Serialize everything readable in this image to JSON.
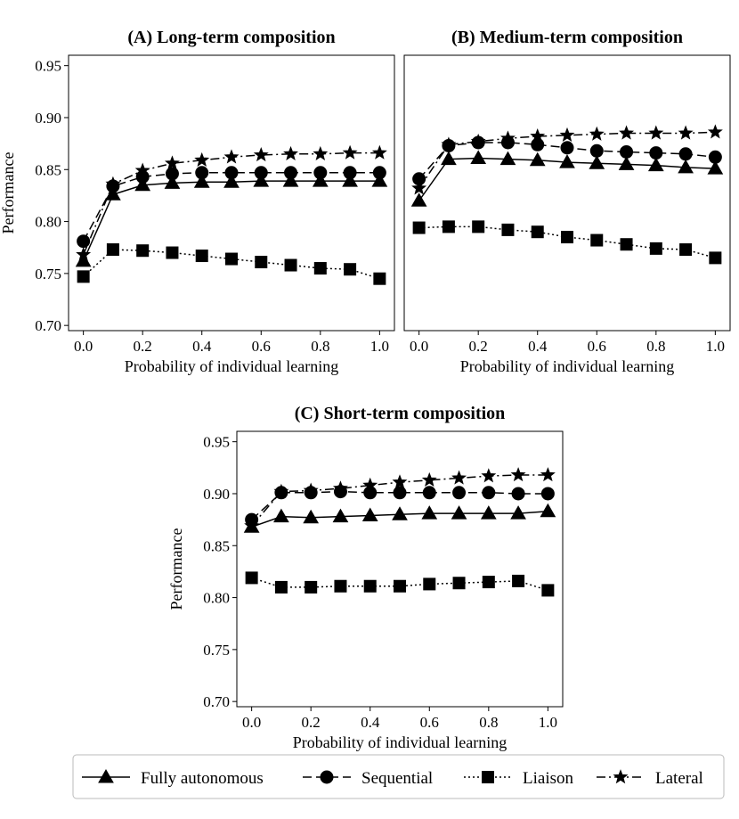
{
  "chart_data": [
    {
      "type": "line",
      "title": "(A) Long-term composition",
      "xlabel": "Probability of individual learning",
      "ylabel": "Performance",
      "xlim": [
        -0.05,
        1.05
      ],
      "ylim": [
        0.695,
        0.96
      ],
      "xticks": [
        "0.0",
        "0.2",
        "0.4",
        "0.6",
        "0.8",
        "1.0"
      ],
      "yticks": [
        "0.70",
        "0.75",
        "0.80",
        "0.85",
        "0.90",
        "0.95"
      ],
      "x": [
        0.0,
        0.1,
        0.2,
        0.3,
        0.4,
        0.5,
        0.6,
        0.7,
        0.8,
        0.9,
        1.0
      ],
      "series": [
        {
          "name": "Fully autonomous",
          "values": [
            0.762,
            0.826,
            0.835,
            0.837,
            0.838,
            0.838,
            0.839,
            0.839,
            0.839,
            0.839,
            0.839
          ]
        },
        {
          "name": "Sequential",
          "values": [
            0.781,
            0.834,
            0.843,
            0.846,
            0.847,
            0.847,
            0.847,
            0.847,
            0.847,
            0.847,
            0.847
          ]
        },
        {
          "name": "Liaison",
          "values": [
            0.747,
            0.773,
            0.772,
            0.77,
            0.767,
            0.764,
            0.761,
            0.758,
            0.755,
            0.754,
            0.745
          ]
        },
        {
          "name": "Lateral",
          "values": [
            0.768,
            0.836,
            0.849,
            0.856,
            0.859,
            0.862,
            0.864,
            0.865,
            0.865,
            0.866,
            0.866
          ]
        }
      ]
    },
    {
      "type": "line",
      "title": "(B) Medium-term composition",
      "xlabel": "Probability of individual learning",
      "ylabel": "",
      "xlim": [
        -0.05,
        1.05
      ],
      "ylim": [
        0.695,
        0.96
      ],
      "xticks": [
        "0.0",
        "0.2",
        "0.4",
        "0.6",
        "0.8",
        "1.0"
      ],
      "yticks": [],
      "x": [
        0.0,
        0.1,
        0.2,
        0.3,
        0.4,
        0.5,
        0.6,
        0.7,
        0.8,
        0.9,
        1.0
      ],
      "series": [
        {
          "name": "Fully autonomous",
          "values": [
            0.82,
            0.86,
            0.861,
            0.86,
            0.859,
            0.857,
            0.856,
            0.855,
            0.854,
            0.852,
            0.851
          ]
        },
        {
          "name": "Sequential",
          "values": [
            0.841,
            0.873,
            0.876,
            0.876,
            0.874,
            0.871,
            0.868,
            0.867,
            0.866,
            0.865,
            0.862
          ]
        },
        {
          "name": "Liaison",
          "values": [
            0.794,
            0.795,
            0.795,
            0.792,
            0.79,
            0.785,
            0.782,
            0.778,
            0.774,
            0.773,
            0.765
          ]
        },
        {
          "name": "Lateral",
          "values": [
            0.832,
            0.874,
            0.877,
            0.88,
            0.882,
            0.883,
            0.884,
            0.885,
            0.885,
            0.885,
            0.886
          ]
        }
      ]
    },
    {
      "type": "line",
      "title": "(C) Short-term composition",
      "xlabel": "Probability of individual learning",
      "ylabel": "Performance",
      "xlim": [
        -0.05,
        1.05
      ],
      "ylim": [
        0.695,
        0.96
      ],
      "xticks": [
        "0.0",
        "0.2",
        "0.4",
        "0.6",
        "0.8",
        "1.0"
      ],
      "yticks": [
        "0.70",
        "0.75",
        "0.80",
        "0.85",
        "0.90",
        "0.95"
      ],
      "x": [
        0.0,
        0.1,
        0.2,
        0.3,
        0.4,
        0.5,
        0.6,
        0.7,
        0.8,
        0.9,
        1.0
      ],
      "series": [
        {
          "name": "Fully autonomous",
          "values": [
            0.868,
            0.878,
            0.877,
            0.878,
            0.879,
            0.88,
            0.881,
            0.881,
            0.881,
            0.881,
            0.883
          ]
        },
        {
          "name": "Sequential",
          "values": [
            0.875,
            0.901,
            0.901,
            0.902,
            0.901,
            0.901,
            0.901,
            0.901,
            0.901,
            0.9,
            0.9
          ]
        },
        {
          "name": "Liaison",
          "values": [
            0.819,
            0.81,
            0.81,
            0.811,
            0.811,
            0.811,
            0.813,
            0.814,
            0.815,
            0.816,
            0.807
          ]
        },
        {
          "name": "Lateral",
          "values": [
            0.869,
            0.902,
            0.903,
            0.905,
            0.908,
            0.911,
            0.913,
            0.915,
            0.917,
            0.918,
            0.918
          ]
        }
      ]
    }
  ],
  "legend": {
    "placement": "bottom",
    "items": [
      "Fully autonomous",
      "Sequential",
      "Liaison",
      "Lateral"
    ]
  },
  "styles": {
    "line_color": "#000000",
    "marker_color": "#000000",
    "background": "#ffffff"
  }
}
